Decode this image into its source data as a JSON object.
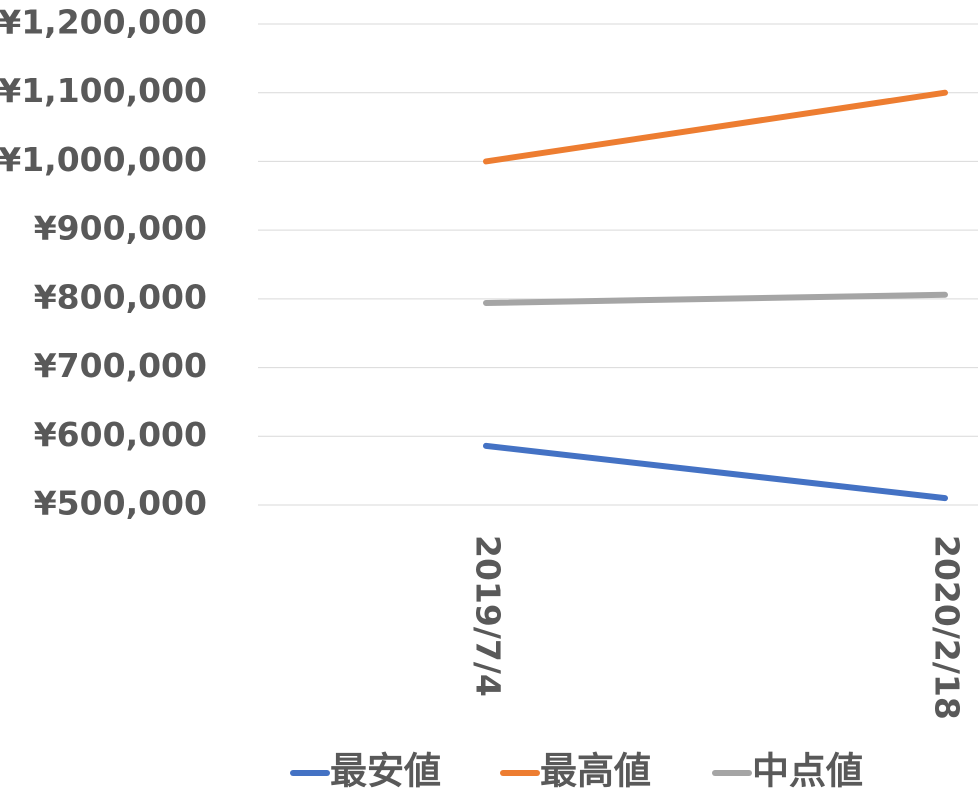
{
  "chart_data": {
    "type": "line",
    "categories": [
      "2019/7/4",
      "2020/2/18"
    ],
    "series": [
      {
        "name": "最安値",
        "color": "#4472c4",
        "values": [
          586000,
          510000
        ]
      },
      {
        "name": "最高値",
        "color": "#ed7d31",
        "values": [
          1000000,
          1100000
        ]
      },
      {
        "name": "中点値",
        "color": "#a5a5a5",
        "values": [
          794000,
          806000
        ]
      }
    ],
    "ylim": [
      500000,
      1200000
    ],
    "yticks": [
      {
        "value": 500000,
        "label": "¥500,000"
      },
      {
        "value": 600000,
        "label": "¥600,000"
      },
      {
        "value": 700000,
        "label": "¥700,000"
      },
      {
        "value": 800000,
        "label": "¥800,000"
      },
      {
        "value": 900000,
        "label": "¥900,000"
      },
      {
        "value": 1000000,
        "label": "¥1,000,000"
      },
      {
        "value": 1100000,
        "label": "¥1,100,000"
      },
      {
        "value": 1200000,
        "label": "¥1,200,000"
      }
    ],
    "grid": true,
    "legend": "bottom"
  }
}
